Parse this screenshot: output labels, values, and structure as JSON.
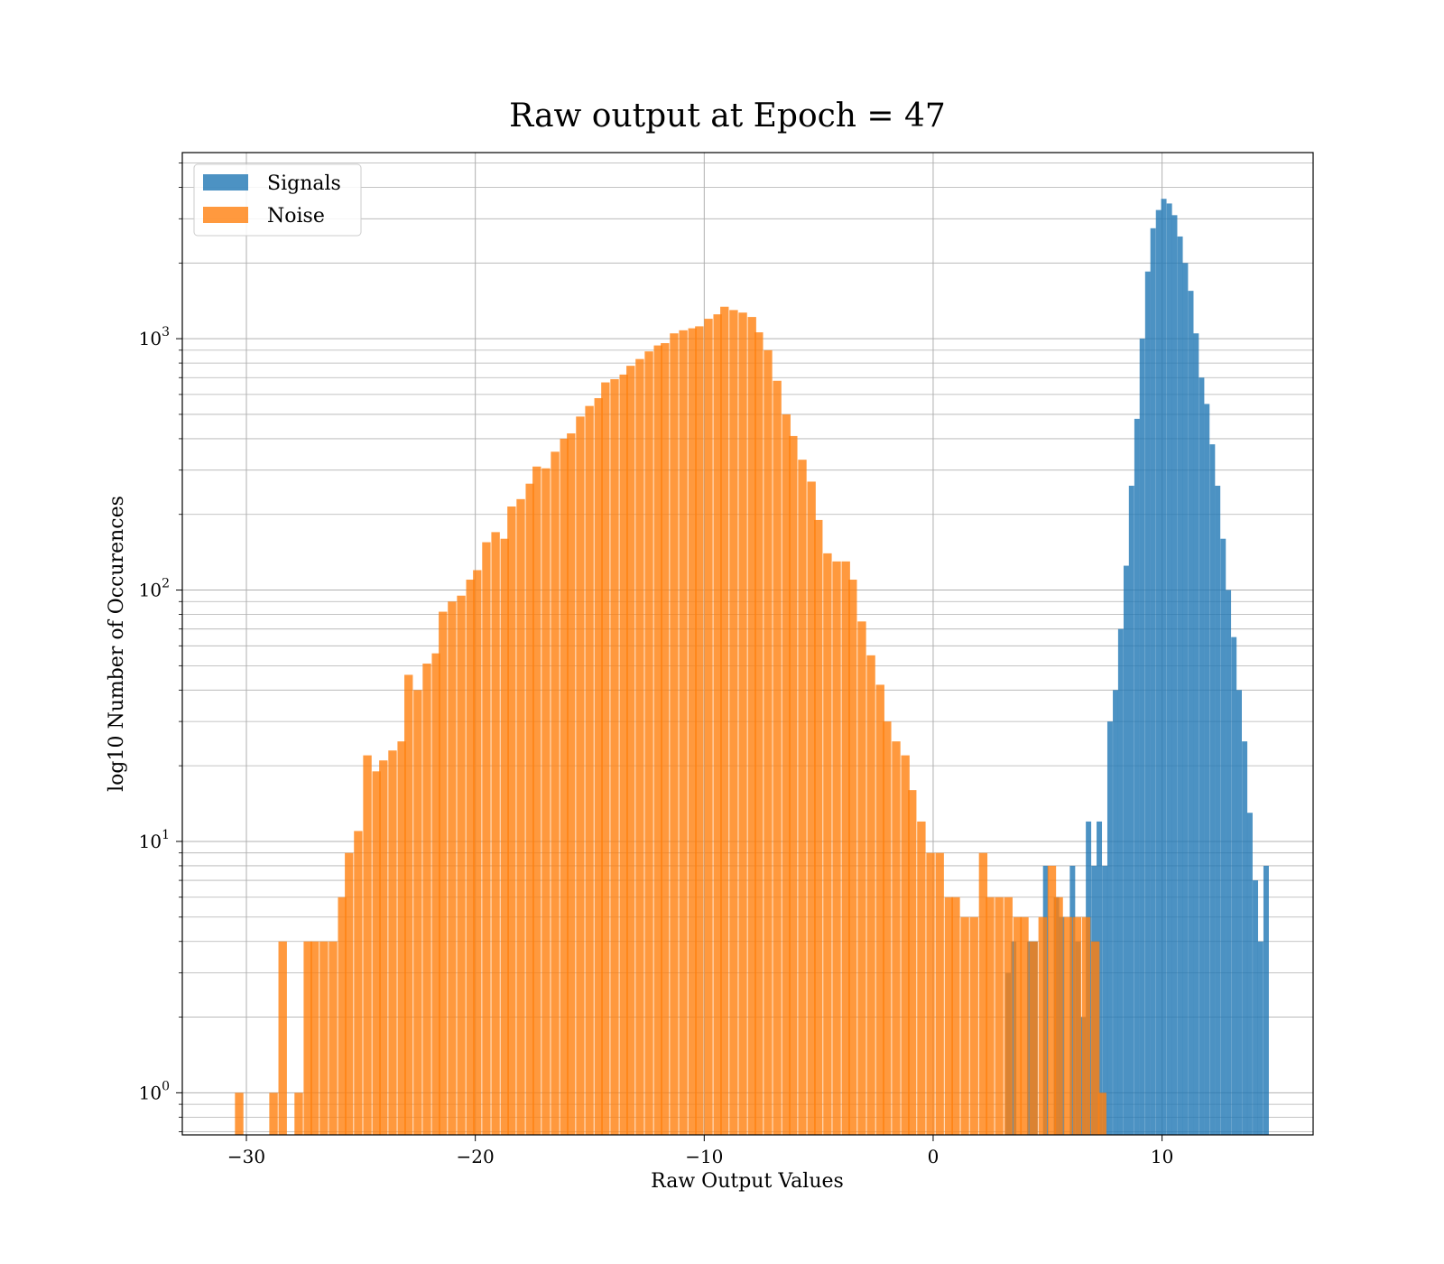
{
  "chart_data": {
    "type": "bar",
    "title": "Raw output at Epoch = 47",
    "xlabel": "Raw Output Values",
    "ylabel": "log10 Number of Occurences",
    "xlim": [
      -32.8,
      16.6
    ],
    "ylim": [
      0.68,
      5500
    ],
    "y_scale": "log",
    "grid": true,
    "grid_minor_y": true,
    "legend_position": "top-left",
    "x_ticks": [
      -30,
      -20,
      -10,
      0,
      10
    ],
    "x_tick_labels": [
      "−30",
      "−20",
      "−10",
      "0",
      "10"
    ],
    "y_ticks": [
      1,
      10,
      100,
      1000
    ],
    "y_tick_labels": [
      {
        "base": "10",
        "exp": "0"
      },
      {
        "base": "10",
        "exp": "1"
      },
      {
        "base": "10",
        "exp": "2"
      },
      {
        "base": "10",
        "exp": "3"
      }
    ],
    "series": [
      {
        "name": "Signals",
        "color": "#1f77b4",
        "opacity": 0.8,
        "bin_width": 0.235,
        "bins": [
          [
            3.16,
            3
          ],
          [
            3.4,
            4
          ],
          [
            4.1,
            4
          ],
          [
            4.33,
            4
          ],
          [
            4.8,
            8
          ],
          [
            5.27,
            6
          ],
          [
            5.5,
            5
          ],
          [
            5.97,
            8
          ],
          [
            6.21,
            4
          ],
          [
            6.44,
            2
          ],
          [
            6.67,
            12
          ],
          [
            6.91,
            8
          ],
          [
            7.14,
            12
          ],
          [
            7.38,
            8
          ],
          [
            7.61,
            30
          ],
          [
            7.85,
            40
          ],
          [
            8.08,
            70
          ],
          [
            8.32,
            125
          ],
          [
            8.55,
            260
          ],
          [
            8.79,
            480
          ],
          [
            9.02,
            1000
          ],
          [
            9.26,
            1850
          ],
          [
            9.49,
            2750
          ],
          [
            9.73,
            3250
          ],
          [
            9.96,
            3600
          ],
          [
            10.2,
            3450
          ],
          [
            10.43,
            3100
          ],
          [
            10.67,
            2550
          ],
          [
            10.9,
            2000
          ],
          [
            11.14,
            1550
          ],
          [
            11.37,
            1050
          ],
          [
            11.61,
            700
          ],
          [
            11.84,
            550
          ],
          [
            12.08,
            380
          ],
          [
            12.31,
            260
          ],
          [
            12.55,
            160
          ],
          [
            12.78,
            100
          ],
          [
            13.02,
            65
          ],
          [
            13.25,
            40
          ],
          [
            13.49,
            25
          ],
          [
            13.72,
            13
          ],
          [
            13.96,
            7
          ],
          [
            14.19,
            4
          ],
          [
            14.43,
            8
          ]
        ]
      },
      {
        "name": "Noise",
        "color": "#ff7f0e",
        "opacity": 0.8,
        "bin_width": 0.37,
        "bins": [
          [
            -30.5,
            1
          ],
          [
            -29.0,
            1
          ],
          [
            -28.6,
            4
          ],
          [
            -27.9,
            1
          ],
          [
            -27.5,
            4
          ],
          [
            -27.2,
            4
          ],
          [
            -26.8,
            4
          ],
          [
            -26.4,
            4
          ],
          [
            -26.0,
            6
          ],
          [
            -25.7,
            9
          ],
          [
            -25.3,
            11
          ],
          [
            -24.9,
            22
          ],
          [
            -24.5,
            19
          ],
          [
            -24.2,
            21
          ],
          [
            -23.8,
            23
          ],
          [
            -23.4,
            25
          ],
          [
            -23.1,
            46
          ],
          [
            -22.7,
            40
          ],
          [
            -22.3,
            51
          ],
          [
            -21.9,
            56
          ],
          [
            -21.6,
            82
          ],
          [
            -21.2,
            90
          ],
          [
            -20.8,
            95
          ],
          [
            -20.4,
            110
          ],
          [
            -20.1,
            120
          ],
          [
            -19.7,
            155
          ],
          [
            -19.3,
            170
          ],
          [
            -18.9,
            160
          ],
          [
            -18.6,
            215
          ],
          [
            -18.2,
            230
          ],
          [
            -17.8,
            265
          ],
          [
            -17.5,
            310
          ],
          [
            -17.1,
            305
          ],
          [
            -16.7,
            355
          ],
          [
            -16.3,
            400
          ],
          [
            -16.0,
            420
          ],
          [
            -15.6,
            490
          ],
          [
            -15.2,
            540
          ],
          [
            -14.8,
            580
          ],
          [
            -14.5,
            670
          ],
          [
            -14.1,
            690
          ],
          [
            -13.7,
            720
          ],
          [
            -13.4,
            780
          ],
          [
            -13.0,
            830
          ],
          [
            -12.6,
            890
          ],
          [
            -12.2,
            940
          ],
          [
            -11.9,
            960
          ],
          [
            -11.5,
            1050
          ],
          [
            -11.1,
            1080
          ],
          [
            -10.7,
            1100
          ],
          [
            -10.4,
            1120
          ],
          [
            -10.0,
            1200
          ],
          [
            -9.6,
            1250
          ],
          [
            -9.3,
            1340
          ],
          [
            -8.9,
            1300
          ],
          [
            -8.5,
            1270
          ],
          [
            -8.1,
            1220
          ],
          [
            -7.8,
            1060
          ],
          [
            -7.4,
            900
          ],
          [
            -7.0,
            680
          ],
          [
            -6.6,
            500
          ],
          [
            -6.3,
            410
          ],
          [
            -5.9,
            330
          ],
          [
            -5.5,
            270
          ],
          [
            -5.2,
            190
          ],
          [
            -4.8,
            140
          ],
          [
            -4.4,
            130
          ],
          [
            -4.0,
            130
          ],
          [
            -3.7,
            110
          ],
          [
            -3.3,
            75
          ],
          [
            -2.9,
            55
          ],
          [
            -2.5,
            42
          ],
          [
            -2.2,
            30
          ],
          [
            -1.8,
            25
          ],
          [
            -1.4,
            22
          ],
          [
            -1.1,
            16
          ],
          [
            -0.7,
            12
          ],
          [
            -0.3,
            9
          ],
          [
            0.1,
            9
          ],
          [
            0.5,
            6
          ],
          [
            0.8,
            6
          ],
          [
            1.2,
            5
          ],
          [
            1.6,
            5
          ],
          [
            2.0,
            9
          ],
          [
            2.3,
            6
          ],
          [
            2.7,
            6
          ],
          [
            3.1,
            6
          ],
          [
            3.5,
            5
          ],
          [
            3.8,
            5
          ],
          [
            4.2,
            4
          ],
          [
            4.6,
            5
          ],
          [
            5.0,
            8
          ],
          [
            5.3,
            6
          ],
          [
            5.7,
            5
          ],
          [
            6.1,
            5
          ],
          [
            6.5,
            5
          ],
          [
            6.9,
            4
          ],
          [
            7.2,
            1
          ]
        ]
      }
    ]
  }
}
